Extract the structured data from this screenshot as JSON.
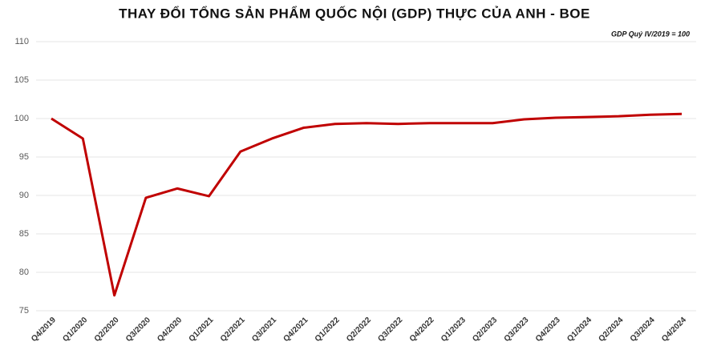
{
  "chart_data": {
    "type": "line",
    "title": "THAY ĐỔI TỔNG SẢN PHẨM QUỐC NỘI (GDP) THỰC CỦA ANH - BOE",
    "note": "GDP Quý IV/2019 = 100",
    "categories": [
      "Q4/2019",
      "Q1/2020",
      "Q2/2020",
      "Q3/2020",
      "Q4/2020",
      "Q1/2021",
      "Q2/2021",
      "Q3/2021",
      "Q4/2021",
      "Q1/2022",
      "Q2/2022",
      "Q3/2022",
      "Q4/2022",
      "Q1/2023",
      "Q2/2023",
      "Q3/2023",
      "Q4/2023",
      "Q1/2024",
      "Q2/2024",
      "Q3/2024",
      "Q4/2024"
    ],
    "values": [
      100,
      97.4,
      77,
      89.7,
      90.9,
      89.9,
      95.7,
      97.4,
      98.8,
      99.3,
      99.4,
      99.3,
      99.4,
      99.4,
      99.4,
      99.9,
      100.1,
      100.2,
      100.3,
      100.5,
      100.6
    ],
    "color": "#c00000",
    "ylim": [
      75,
      110
    ],
    "yticks": [
      75,
      80,
      85,
      90,
      95,
      100,
      105,
      110
    ],
    "grid": true
  }
}
